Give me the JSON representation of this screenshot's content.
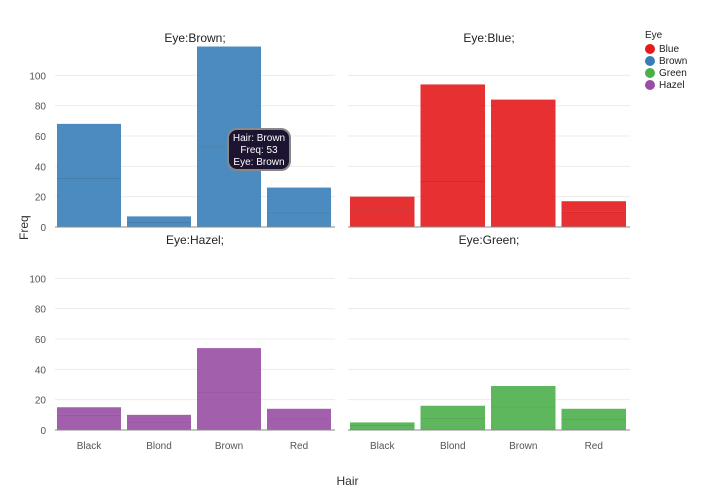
{
  "chart_data": {
    "type": "bar",
    "title": "",
    "xlabel": "Hair",
    "ylabel": "Freq",
    "ylim": [
      0,
      120
    ],
    "yticks": [
      0,
      20,
      40,
      60,
      80,
      100
    ],
    "categories": [
      "Black",
      "Blond",
      "Brown",
      "Red"
    ],
    "legend": {
      "title": "Eye",
      "position": "top-right",
      "entries": [
        {
          "name": "Blue",
          "color": "#e41a1c"
        },
        {
          "name": "Brown",
          "color": "#377eb8"
        },
        {
          "name": "Green",
          "color": "#4daf4a"
        },
        {
          "name": "Hazel",
          "color": "#984ea3"
        }
      ]
    },
    "facets": [
      {
        "title": "Eye:Brown;",
        "eye": "Brown",
        "color": "#377eb8",
        "values": [
          68,
          7,
          119,
          26
        ],
        "segments": [
          [
            32,
            36
          ],
          [
            3,
            4
          ],
          [
            53,
            66
          ],
          [
            10,
            16
          ]
        ]
      },
      {
        "title": "Eye:Blue;",
        "eye": "Blue",
        "color": "#e41a1c",
        "values": [
          20,
          94,
          84,
          17
        ],
        "segments": [
          [
            11,
            9
          ],
          [
            30,
            64
          ],
          [
            50,
            34
          ],
          [
            10,
            7
          ]
        ]
      },
      {
        "title": "Eye:Hazel;",
        "eye": "Hazel",
        "color": "#984ea3",
        "values": [
          15,
          10,
          54,
          14
        ],
        "segments": [
          [
            10,
            5
          ],
          [
            5,
            5
          ],
          [
            25,
            29
          ],
          [
            7,
            7
          ]
        ]
      },
      {
        "title": "Eye:Green;",
        "eye": "Green",
        "color": "#4daf4a",
        "values": [
          5,
          16,
          29,
          14
        ],
        "segments": [
          [
            3,
            2
          ],
          [
            8,
            8
          ],
          [
            15,
            14
          ],
          [
            7,
            7
          ]
        ]
      }
    ]
  },
  "tooltip": {
    "line1": "Hair: Brown",
    "line2": "Freq: 53",
    "line3": "Eye: Brown"
  }
}
